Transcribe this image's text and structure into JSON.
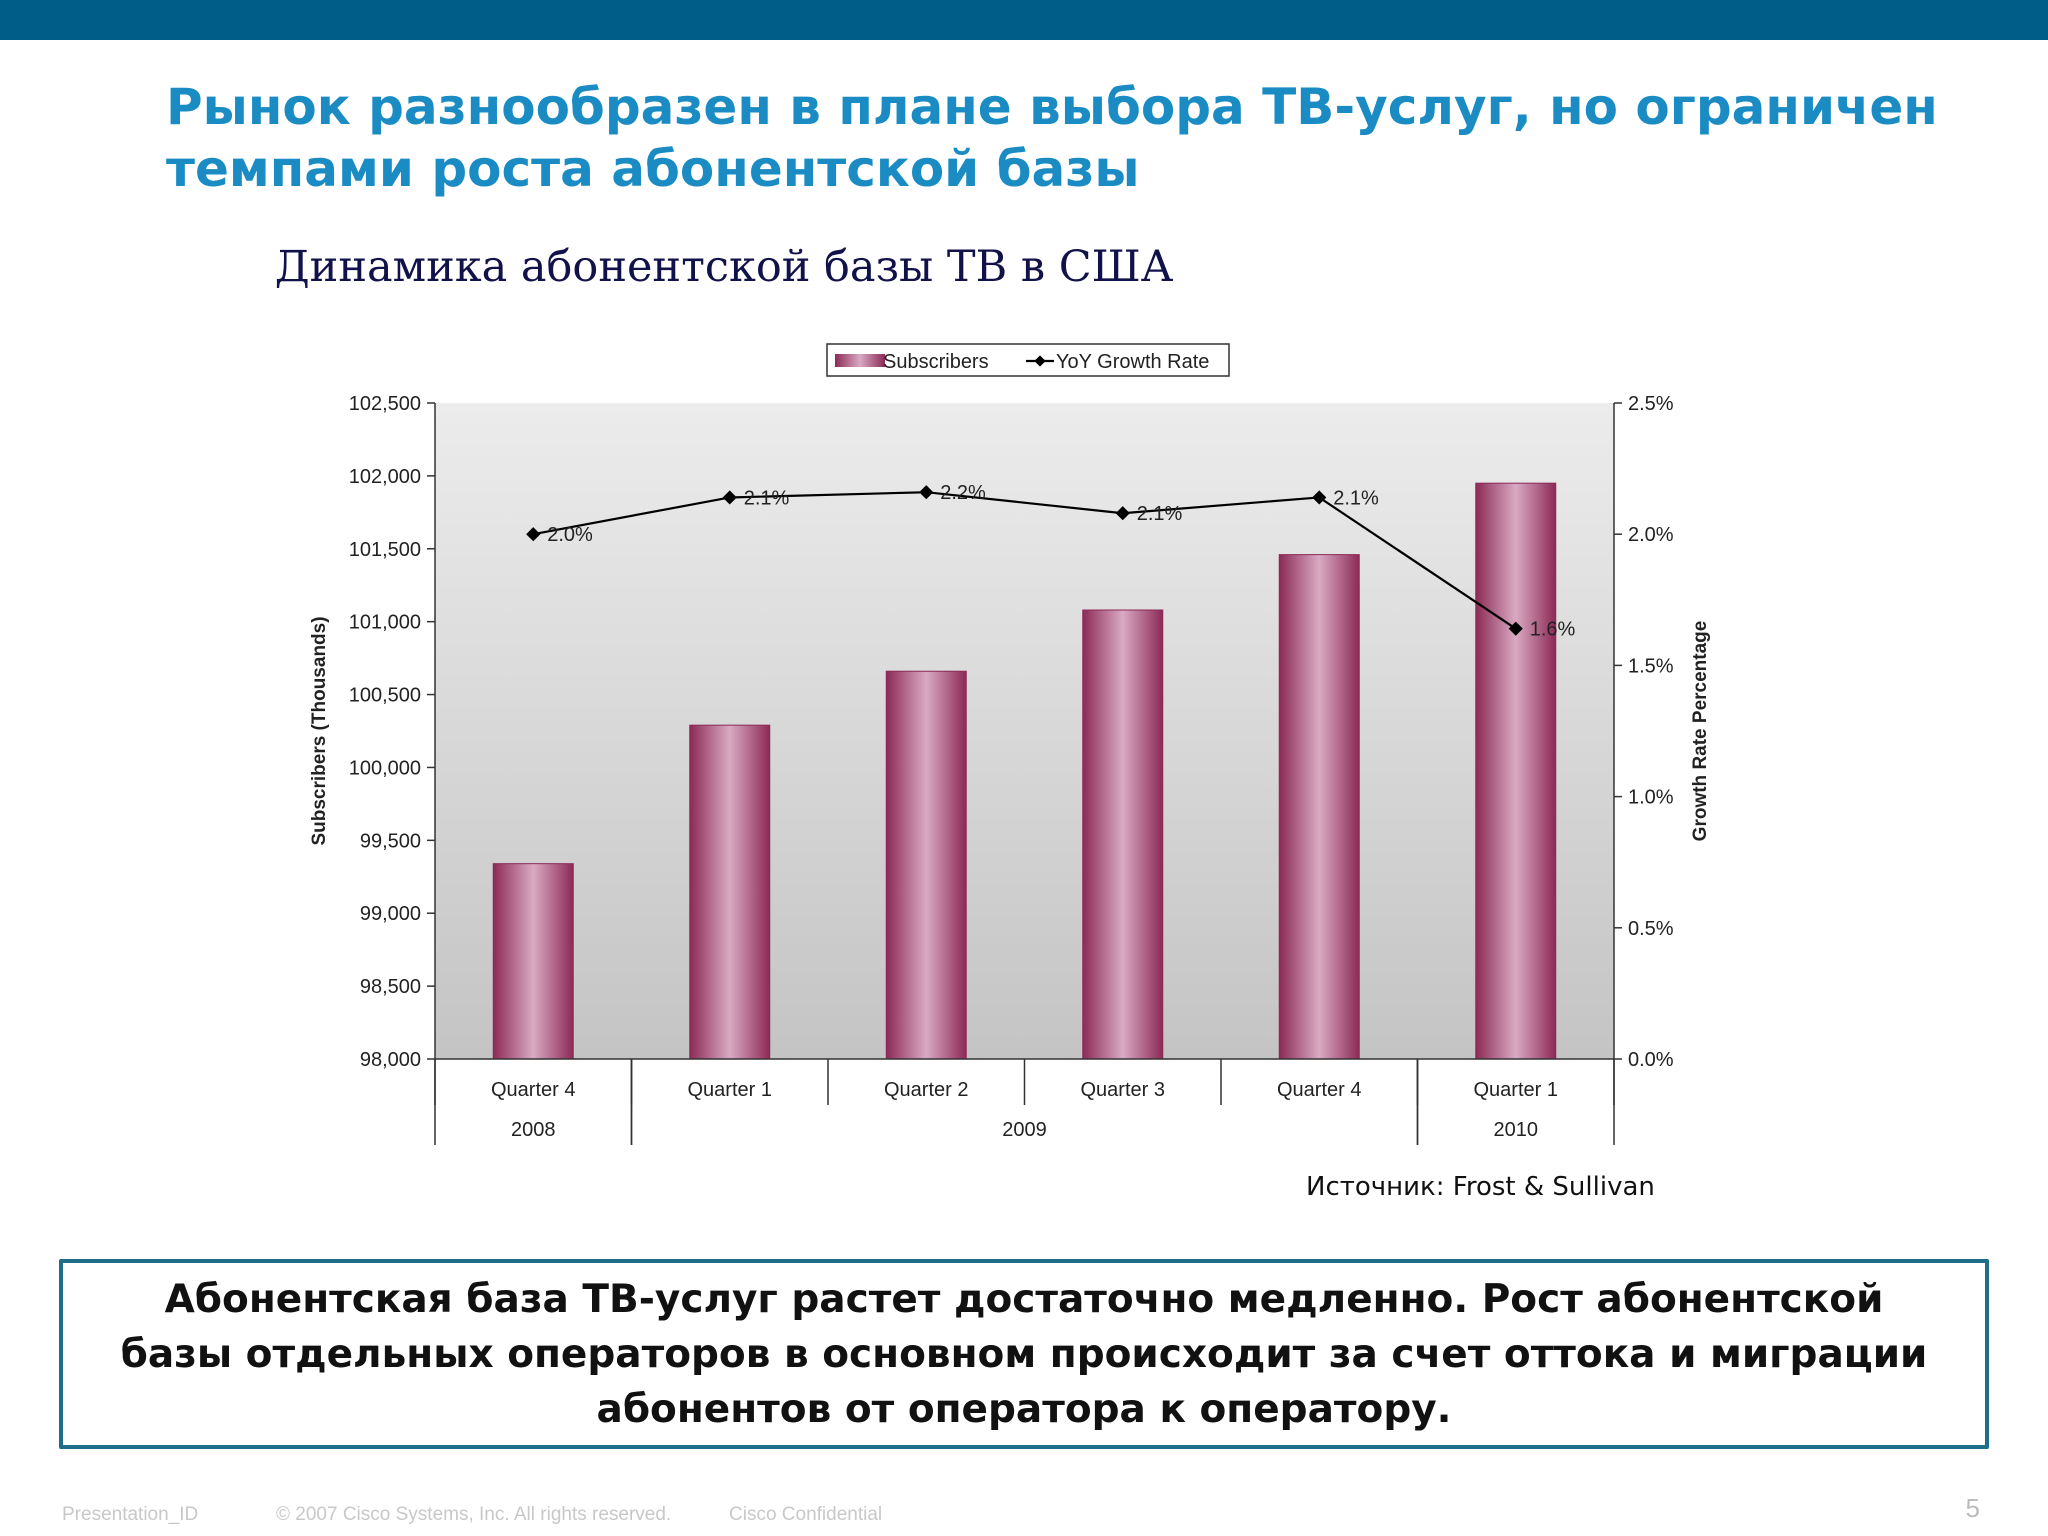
{
  "slide": {
    "title_lines": [
      "Рынок разнообразен в плане выбора ТВ-услуг, но ограничен",
      "темпами роста абонентской базы"
    ],
    "chart_heading": "Динамика абонентской  базы ТВ в США",
    "source": "Источник: Frost & Sullivan",
    "conclusion": "Абонентская база ТВ-услуг растет достаточно медленно. Рост абонентской базы отдельных операторов в основном происходит за счет оттока и миграции абонентов от оператора к оператору.",
    "footer": {
      "presentation_id": "Presentation_ID",
      "copyright": "© 2007 Cisco Systems, Inc. All rights reserved.",
      "confidential": "Cisco Confidential",
      "page_number": "5"
    }
  },
  "colors": {
    "top_bar": "#005d87",
    "title": "#1a8cc3",
    "box_border": "#1f6e89",
    "bar_edge": "#8c2a56",
    "bar_center": "#d9aac3",
    "line": "#000000",
    "plot_bg_top": "#ececec",
    "plot_bg_bottom": "#c4c4c4"
  },
  "chart_data": {
    "type": "bar",
    "categories": [
      "Quarter 4",
      "Quarter 1",
      "Quarter 2",
      "Quarter 3",
      "Quarter 4",
      "Quarter 1"
    ],
    "year_groups": [
      {
        "label": "2008",
        "span": 1
      },
      {
        "label": "2009",
        "span": 4
      },
      {
        "label": "2010",
        "span": 1
      }
    ],
    "series": [
      {
        "name": "Subscribers",
        "type": "bar",
        "axis": "left",
        "values": [
          99340,
          100290,
          100660,
          101080,
          101460,
          101950
        ]
      },
      {
        "name": "YoY Growth Rate",
        "type": "line",
        "axis": "right",
        "values": [
          2.0,
          2.14,
          2.16,
          2.08,
          2.14,
          1.64
        ],
        "labels": [
          "2.0%",
          "2.1%",
          "2.2%",
          "2.1%",
          "2.1%",
          "1.6%"
        ]
      }
    ],
    "ylabel": "Subscribers (Thousands)",
    "ylabel_right": "Growth Rate Percentage",
    "ylim": [
      98000,
      102500
    ],
    "ylim_right": [
      0,
      2.5
    ],
    "yticks": [
      "102,500",
      "102,000",
      "101,500",
      "101,000",
      "100,500",
      "100,000",
      "99,500",
      "99,000",
      "98,500",
      "98,000"
    ],
    "yticks_right": [
      "2.5%",
      "2.0%",
      "1.5%",
      "1.0%",
      "0.5%",
      "0.0%"
    ],
    "legend": {
      "placement": "top-center",
      "entries": [
        "Subscribers",
        "YoY Growth Rate"
      ]
    },
    "grid": false
  }
}
